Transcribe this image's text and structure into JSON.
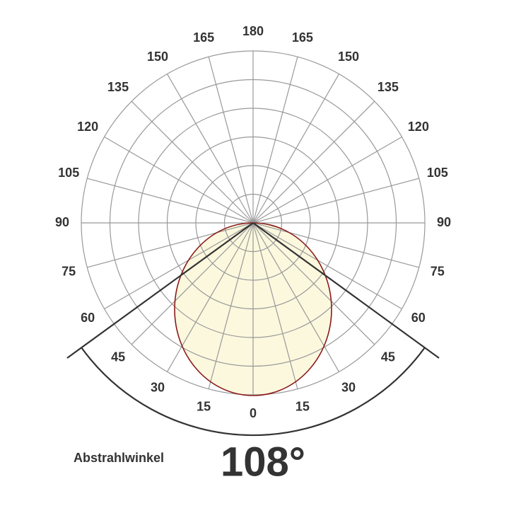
{
  "diagram": {
    "top_label": "180",
    "bottom_label": "0",
    "left_labels": [
      "15",
      "30",
      "45",
      "60",
      "75",
      "90",
      "105",
      "120",
      "135",
      "150",
      "165"
    ],
    "right_labels": [
      "15",
      "30",
      "45",
      "60",
      "75",
      "90",
      "105",
      "120",
      "135",
      "150",
      "165"
    ]
  },
  "caption": {
    "label": "Abstrahlwinkel",
    "value": "108°"
  }
}
